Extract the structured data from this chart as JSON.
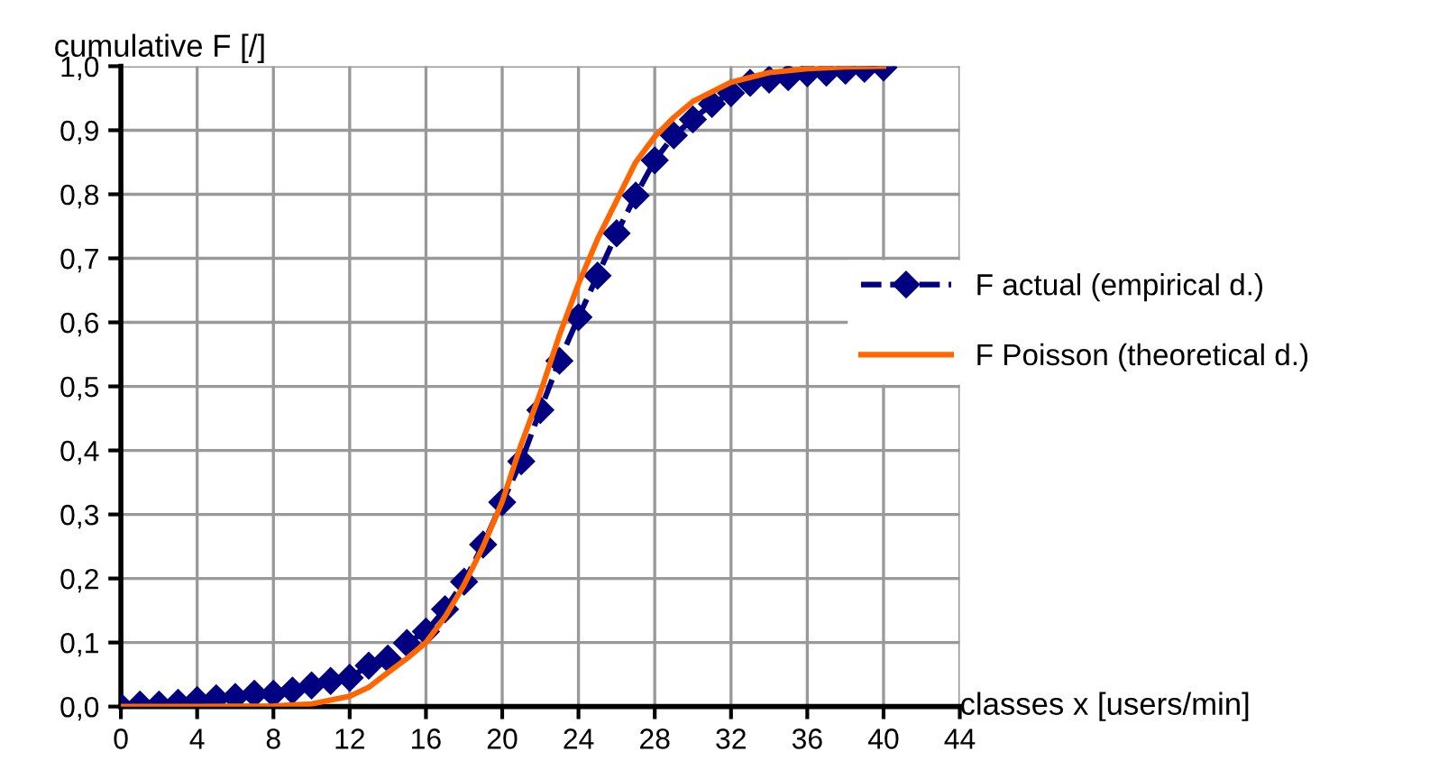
{
  "chart_data": {
    "type": "line",
    "xlabel": "classes x [users/min]",
    "ylabel": "cumulative F [/]",
    "xlim": [
      0,
      44
    ],
    "xticks": [
      0,
      4,
      8,
      12,
      16,
      20,
      24,
      28,
      32,
      36,
      40,
      44
    ],
    "ylim": [
      0,
      1
    ],
    "yticks": [
      {
        "value": 0,
        "label": "0,0"
      },
      {
        "value": 0.1,
        "label": "0,1"
      },
      {
        "value": 0.2,
        "label": "0,2"
      },
      {
        "value": 0.3,
        "label": "0,3"
      },
      {
        "value": 0.4,
        "label": "0,4"
      },
      {
        "value": 0.5,
        "label": "0,5"
      },
      {
        "value": 0.6,
        "label": "0,6"
      },
      {
        "value": 0.7,
        "label": "0,7"
      },
      {
        "value": 0.8,
        "label": "0,8"
      },
      {
        "value": 0.9,
        "label": "0,9"
      },
      {
        "value": 1,
        "label": "1,0"
      }
    ],
    "grid": true,
    "legend": "right",
    "series": [
      {
        "name": "F actual (empirical d.)",
        "color": "#000080",
        "marker": "diamond",
        "line_style": "dashed",
        "x": [
          0,
          1,
          2,
          3,
          4,
          5,
          6,
          7,
          8,
          9,
          10,
          11,
          12,
          13,
          14,
          15,
          16,
          17,
          18,
          19,
          20,
          21,
          22,
          23,
          24,
          25,
          26,
          27,
          28,
          29,
          30,
          31,
          32,
          33,
          34,
          35,
          36,
          37,
          38,
          39,
          40
        ],
        "values": [
          0,
          0.003,
          0.003,
          0.006,
          0.01,
          0.013,
          0.015,
          0.02,
          0.02,
          0.025,
          0.033,
          0.04,
          0.045,
          0.064,
          0.075,
          0.099,
          0.117,
          0.152,
          0.195,
          0.253,
          0.319,
          0.383,
          0.463,
          0.54,
          0.608,
          0.673,
          0.739,
          0.798,
          0.853,
          0.892,
          0.917,
          0.941,
          0.958,
          0.974,
          0.979,
          0.983,
          0.989,
          0.99,
          0.993,
          0.996,
          0.998
        ]
      },
      {
        "name": "F Poisson (theoretical d.)",
        "color": "#ff6600",
        "marker": "none",
        "line_style": "solid",
        "x": [
          0,
          4,
          8,
          10,
          12,
          13,
          14,
          15,
          16,
          17,
          18,
          19,
          20,
          21,
          22,
          23,
          24,
          25,
          26,
          27,
          28,
          29,
          30,
          32,
          34,
          36,
          38,
          40
        ],
        "values": [
          0,
          0,
          0.001,
          0.004,
          0.016,
          0.03,
          0.053,
          0.075,
          0.1,
          0.14,
          0.19,
          0.25,
          0.32,
          0.41,
          0.49,
          0.58,
          0.66,
          0.73,
          0.79,
          0.85,
          0.89,
          0.92,
          0.945,
          0.975,
          0.99,
          0.996,
          0.999,
          1.0
        ]
      }
    ]
  }
}
